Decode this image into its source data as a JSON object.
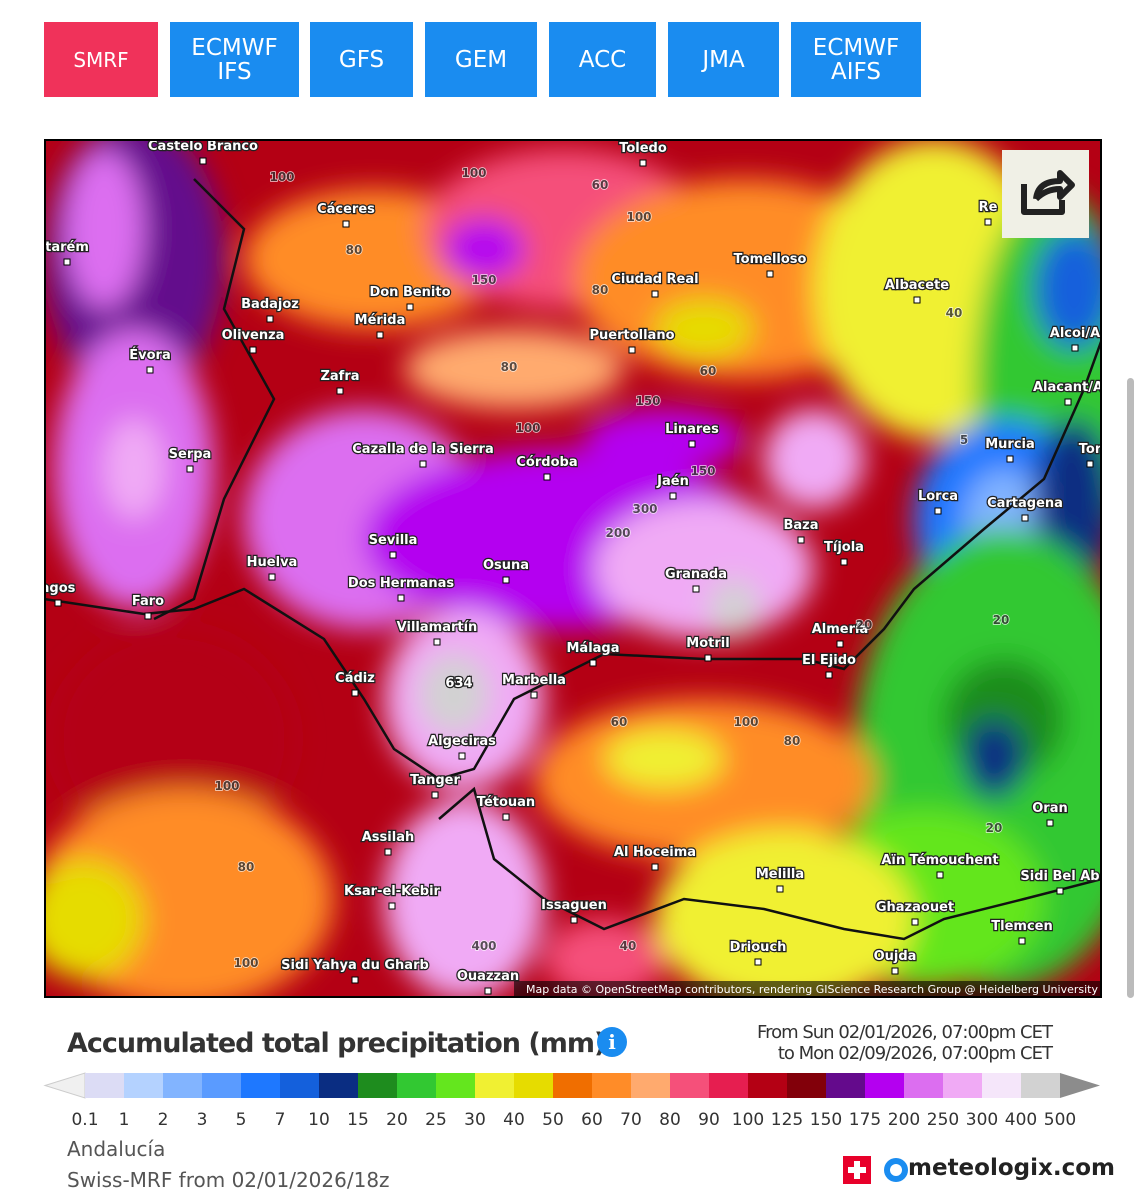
{
  "tabs": [
    "SMRF",
    "ECMWF IFS",
    "GFS",
    "GEM",
    "ACC",
    "JMA",
    "ECMWF AIFS"
  ],
  "map": {
    "cities": [
      "Castelo Branco",
      "Cáceres",
      "Toledo",
      "Tomelloso",
      "Albacete",
      "Re",
      "Badajoz",
      "Don Benito",
      "Mérida",
      "Ciudad Real",
      "Puertollano",
      "Olivenza",
      "tarém",
      "Évora",
      "Alcoi/A",
      "Zafra",
      "Alacant/A",
      "Linares",
      "Murcia",
      "Tor",
      "Serpa",
      "Cazalla de la Sierra",
      "Córdoba",
      "Jaén",
      "Lorca",
      "Cartagena",
      "Baza",
      "Tíjola",
      "Sevilla",
      "Huelva",
      "Osuna",
      "Granada",
      "Dos Hermanas",
      "agos",
      "Faro",
      "Almería",
      "Villamartín",
      "Málaga",
      "Motril",
      "El Ejido",
      "Cádiz",
      "Marbella",
      "Algeciras",
      "Tanger",
      "Tétouan",
      "Oran",
      "Assilah",
      "Al Hoceima",
      "Aïn Témouchent",
      "Melilla",
      "Sidi Bel Ab",
      "Ksar-el-Kebir",
      "Issaguen",
      "Ghazaouet",
      "Tlemcen",
      "Driouch",
      "Sidi Yahya du Gharb",
      "Oujda",
      "Ouazzan"
    ],
    "contours": [
      "100",
      "100",
      "80",
      "150",
      "60",
      "80",
      "100",
      "80",
      "40",
      "100",
      "60",
      "150",
      "150",
      "300",
      "200",
      "5",
      "20",
      "20",
      "60",
      "100",
      "80",
      "100",
      "80",
      "100",
      "20",
      "400",
      "40",
      "634"
    ],
    "attribution": "Map data © OpenStreetMap contributors, rendering GIScience Research Group @ Heidelberg University"
  },
  "legend": {
    "title": "Accumulated total precipitation (mm)",
    "from": "From Sun 02/01/2026, 07:00pm CET",
    "to": "to Mon 02/09/2026, 07:00pm CET",
    "labels": [
      0.1,
      1,
      2,
      3,
      5,
      7,
      10,
      15,
      20,
      25,
      30,
      40,
      50,
      60,
      70,
      80,
      90,
      100,
      125,
      150,
      175,
      200,
      250,
      300,
      400,
      500
    ],
    "colors": [
      "#dcdcf5",
      "#b4d2ff",
      "#82b4ff",
      "#5a9bff",
      "#1e78ff",
      "#1460dc",
      "#0a2d82",
      "#1e8c1e",
      "#32c832",
      "#64e61e",
      "#f0f032",
      "#e6dc00",
      "#f06e00",
      "#ff8c28",
      "#ffaa6e",
      "#f5507a",
      "#e61e50",
      "#b40014",
      "#82000a",
      "#640a8c",
      "#b400f0",
      "#dc6ef0",
      "#f0aaf5",
      "#f5e6fa",
      "#d2d2d2"
    ]
  },
  "footer": {
    "region": "Andalucía",
    "run": "Swiss-MRF from 02/01/2026/18z",
    "brand": "meteologix.com"
  }
}
